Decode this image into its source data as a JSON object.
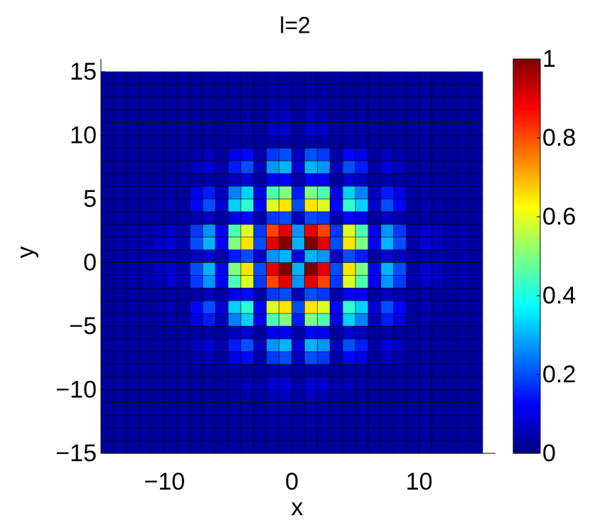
{
  "chart_data": {
    "type": "heatmap",
    "title": "l=2",
    "xlabel": "x",
    "ylabel": "y",
    "colormap": "jet",
    "x": [
      -15,
      -14,
      -13,
      -12,
      -11,
      -10,
      -9,
      -8,
      -7,
      -6,
      -5,
      -4,
      -3,
      -2,
      -1,
      0,
      1,
      2,
      3,
      4,
      5,
      6,
      7,
      8,
      9,
      10,
      11,
      12,
      13,
      14
    ],
    "y": [
      -15,
      -14,
      -13,
      -12,
      -11,
      -10,
      -9,
      -8,
      -7,
      -6,
      -5,
      -4,
      -3,
      -2,
      -1,
      0,
      1,
      2,
      3,
      4,
      5,
      6,
      7,
      8,
      9,
      10,
      11,
      12,
      13,
      14
    ],
    "z": [
      [
        0.03,
        0.03,
        0.03,
        0.03,
        0.03,
        0.03,
        0.03,
        0.03,
        0.03,
        0.03,
        0.03,
        0.03,
        0.03,
        0.03,
        0.03,
        0.03,
        0.03,
        0.03,
        0.03,
        0.03,
        0.03,
        0.03,
        0.03,
        0.03,
        0.03,
        0.03,
        0.03,
        0.03,
        0.03,
        0.03
      ],
      [
        0.03,
        0.03,
        0.03,
        0.03,
        0.03,
        0.03,
        0.03,
        0.03,
        0.03,
        0.03,
        0.03,
        0.03,
        0.03,
        0.03,
        0.03,
        0.03,
        0.03,
        0.03,
        0.03,
        0.03,
        0.03,
        0.03,
        0.03,
        0.03,
        0.03,
        0.03,
        0.03,
        0.03,
        0.03,
        0.03
      ],
      [
        0.03,
        0.03,
        0.03,
        0.03,
        0.03,
        0.03,
        0.03,
        0.03,
        0.03,
        0.03,
        0.03,
        0.03,
        0.03,
        0.04,
        0.04,
        0.03,
        0.04,
        0.04,
        0.03,
        0.03,
        0.03,
        0.03,
        0.03,
        0.03,
        0.03,
        0.03,
        0.03,
        0.03,
        0.03,
        0.03
      ],
      [
        0.03,
        0.03,
        0.03,
        0.03,
        0.03,
        0.03,
        0.03,
        0.03,
        0.03,
        0.03,
        0.03,
        0.03,
        0.03,
        0.04,
        0.04,
        0.03,
        0.04,
        0.04,
        0.03,
        0.03,
        0.03,
        0.03,
        0.03,
        0.03,
        0.03,
        0.03,
        0.03,
        0.03,
        0.03,
        0.03
      ],
      [
        0.03,
        0.03,
        0.03,
        0.03,
        0.03,
        0.03,
        0.03,
        0.03,
        0.03,
        0.03,
        0.03,
        0.04,
        0.03,
        0.05,
        0.06,
        0.03,
        0.06,
        0.05,
        0.03,
        0.04,
        0.03,
        0.03,
        0.03,
        0.03,
        0.03,
        0.03,
        0.03,
        0.03,
        0.03,
        0.03
      ],
      [
        0.03,
        0.03,
        0.03,
        0.03,
        0.03,
        0.03,
        0.03,
        0.03,
        0.03,
        0.03,
        0.04,
        0.05,
        0.03,
        0.07,
        0.08,
        0.03,
        0.08,
        0.07,
        0.03,
        0.05,
        0.04,
        0.03,
        0.03,
        0.03,
        0.03,
        0.03,
        0.03,
        0.03,
        0.03,
        0.03
      ],
      [
        0.03,
        0.03,
        0.03,
        0.03,
        0.03,
        0.03,
        0.03,
        0.03,
        0.03,
        0.03,
        0.03,
        0.03,
        0.03,
        0.04,
        0.04,
        0.03,
        0.04,
        0.04,
        0.03,
        0.03,
        0.03,
        0.03,
        0.03,
        0.03,
        0.03,
        0.03,
        0.03,
        0.03,
        0.03,
        0.03
      ],
      [
        0.03,
        0.03,
        0.03,
        0.03,
        0.03,
        0.03,
        0.03,
        0.04,
        0.06,
        0.03,
        0.1,
        0.13,
        0.04,
        0.18,
        0.2,
        0.06,
        0.2,
        0.18,
        0.04,
        0.13,
        0.1,
        0.03,
        0.06,
        0.04,
        0.03,
        0.03,
        0.03,
        0.03,
        0.03,
        0.03
      ],
      [
        0.03,
        0.03,
        0.03,
        0.03,
        0.03,
        0.03,
        0.03,
        0.06,
        0.09,
        0.04,
        0.15,
        0.2,
        0.06,
        0.27,
        0.3,
        0.09,
        0.3,
        0.27,
        0.06,
        0.2,
        0.15,
        0.04,
        0.09,
        0.06,
        0.03,
        0.03,
        0.03,
        0.03,
        0.03,
        0.03
      ],
      [
        0.03,
        0.03,
        0.03,
        0.03,
        0.03,
        0.03,
        0.03,
        0.03,
        0.04,
        0.03,
        0.06,
        0.08,
        0.03,
        0.11,
        0.12,
        0.04,
        0.12,
        0.11,
        0.03,
        0.08,
        0.06,
        0.03,
        0.04,
        0.03,
        0.03,
        0.03,
        0.03,
        0.03,
        0.03,
        0.03
      ],
      [
        0.03,
        0.03,
        0.03,
        0.03,
        0.03,
        0.04,
        0.03,
        0.1,
        0.15,
        0.06,
        0.25,
        0.33,
        0.1,
        0.45,
        0.5,
        0.15,
        0.5,
        0.45,
        0.1,
        0.33,
        0.25,
        0.06,
        0.15,
        0.1,
        0.03,
        0.04,
        0.03,
        0.03,
        0.03,
        0.03
      ],
      [
        0.03,
        0.03,
        0.03,
        0.03,
        0.04,
        0.05,
        0.03,
        0.13,
        0.2,
        0.08,
        0.33,
        0.42,
        0.13,
        0.59,
        0.65,
        0.2,
        0.65,
        0.59,
        0.13,
        0.42,
        0.33,
        0.08,
        0.2,
        0.13,
        0.03,
        0.05,
        0.04,
        0.03,
        0.03,
        0.03
      ],
      [
        0.03,
        0.03,
        0.03,
        0.03,
        0.03,
        0.03,
        0.03,
        0.04,
        0.06,
        0.03,
        0.1,
        0.13,
        0.04,
        0.18,
        0.2,
        0.06,
        0.2,
        0.18,
        0.04,
        0.13,
        0.1,
        0.03,
        0.06,
        0.04,
        0.03,
        0.03,
        0.03,
        0.03,
        0.03,
        0.03
      ],
      [
        0.03,
        0.03,
        0.04,
        0.04,
        0.05,
        0.07,
        0.04,
        0.18,
        0.27,
        0.11,
        0.45,
        0.59,
        0.18,
        0.81,
        0.9,
        0.27,
        0.9,
        0.81,
        0.18,
        0.59,
        0.45,
        0.11,
        0.27,
        0.18,
        0.04,
        0.07,
        0.05,
        0.04,
        0.04,
        0.03
      ],
      [
        0.03,
        0.03,
        0.04,
        0.04,
        0.06,
        0.08,
        0.04,
        0.2,
        0.3,
        0.12,
        0.5,
        0.65,
        0.2,
        0.9,
        1,
        0.3,
        1,
        0.9,
        0.2,
        0.65,
        0.5,
        0.12,
        0.3,
        0.2,
        0.04,
        0.08,
        0.06,
        0.04,
        0.04,
        0.03
      ],
      [
        0.03,
        0.03,
        0.03,
        0.03,
        0.03,
        0.03,
        0.03,
        0.06,
        0.09,
        0.04,
        0.15,
        0.2,
        0.06,
        0.27,
        0.3,
        0.09,
        0.3,
        0.27,
        0.06,
        0.2,
        0.15,
        0.04,
        0.09,
        0.06,
        0.03,
        0.03,
        0.03,
        0.03,
        0.03,
        0.03
      ],
      [
        0.03,
        0.03,
        0.04,
        0.04,
        0.06,
        0.08,
        0.04,
        0.2,
        0.3,
        0.12,
        0.5,
        0.65,
        0.2,
        0.9,
        1,
        0.3,
        1,
        0.9,
        0.2,
        0.65,
        0.5,
        0.12,
        0.3,
        0.2,
        0.04,
        0.08,
        0.06,
        0.04,
        0.04,
        0.03
      ],
      [
        0.03,
        0.03,
        0.04,
        0.04,
        0.05,
        0.07,
        0.04,
        0.18,
        0.27,
        0.11,
        0.45,
        0.59,
        0.18,
        0.81,
        0.9,
        0.27,
        0.9,
        0.81,
        0.18,
        0.59,
        0.45,
        0.11,
        0.27,
        0.18,
        0.04,
        0.07,
        0.05,
        0.04,
        0.04,
        0.03
      ],
      [
        0.03,
        0.03,
        0.03,
        0.03,
        0.03,
        0.03,
        0.03,
        0.04,
        0.06,
        0.03,
        0.1,
        0.13,
        0.04,
        0.18,
        0.2,
        0.06,
        0.2,
        0.18,
        0.04,
        0.13,
        0.1,
        0.03,
        0.06,
        0.04,
        0.03,
        0.03,
        0.03,
        0.03,
        0.03,
        0.03
      ],
      [
        0.03,
        0.03,
        0.03,
        0.03,
        0.04,
        0.05,
        0.03,
        0.13,
        0.2,
        0.08,
        0.33,
        0.42,
        0.13,
        0.59,
        0.65,
        0.2,
        0.65,
        0.59,
        0.13,
        0.42,
        0.33,
        0.08,
        0.2,
        0.13,
        0.03,
        0.05,
        0.04,
        0.03,
        0.03,
        0.03
      ],
      [
        0.03,
        0.03,
        0.03,
        0.03,
        0.03,
        0.04,
        0.03,
        0.1,
        0.15,
        0.06,
        0.25,
        0.33,
        0.1,
        0.45,
        0.5,
        0.15,
        0.5,
        0.45,
        0.1,
        0.33,
        0.25,
        0.06,
        0.15,
        0.1,
        0.03,
        0.04,
        0.03,
        0.03,
        0.03,
        0.03
      ],
      [
        0.03,
        0.03,
        0.03,
        0.03,
        0.03,
        0.03,
        0.03,
        0.03,
        0.04,
        0.03,
        0.06,
        0.08,
        0.03,
        0.11,
        0.12,
        0.04,
        0.12,
        0.11,
        0.03,
        0.08,
        0.06,
        0.03,
        0.04,
        0.03,
        0.03,
        0.03,
        0.03,
        0.03,
        0.03,
        0.03
      ],
      [
        0.03,
        0.03,
        0.03,
        0.03,
        0.03,
        0.03,
        0.03,
        0.06,
        0.09,
        0.04,
        0.15,
        0.2,
        0.06,
        0.27,
        0.3,
        0.09,
        0.3,
        0.27,
        0.06,
        0.2,
        0.15,
        0.04,
        0.09,
        0.06,
        0.03,
        0.03,
        0.03,
        0.03,
        0.03,
        0.03
      ],
      [
        0.03,
        0.03,
        0.03,
        0.03,
        0.03,
        0.03,
        0.03,
        0.04,
        0.06,
        0.03,
        0.1,
        0.13,
        0.04,
        0.18,
        0.2,
        0.06,
        0.2,
        0.18,
        0.04,
        0.13,
        0.1,
        0.03,
        0.06,
        0.04,
        0.03,
        0.03,
        0.03,
        0.03,
        0.03,
        0.03
      ],
      [
        0.03,
        0.03,
        0.03,
        0.03,
        0.03,
        0.03,
        0.03,
        0.03,
        0.03,
        0.03,
        0.03,
        0.03,
        0.03,
        0.04,
        0.04,
        0.03,
        0.04,
        0.04,
        0.03,
        0.03,
        0.03,
        0.03,
        0.03,
        0.03,
        0.03,
        0.03,
        0.03,
        0.03,
        0.03,
        0.03
      ],
      [
        0.03,
        0.03,
        0.03,
        0.03,
        0.03,
        0.03,
        0.03,
        0.03,
        0.03,
        0.03,
        0.04,
        0.05,
        0.03,
        0.07,
        0.08,
        0.03,
        0.08,
        0.07,
        0.03,
        0.05,
        0.04,
        0.03,
        0.03,
        0.03,
        0.03,
        0.03,
        0.03,
        0.03,
        0.03,
        0.03
      ],
      [
        0.03,
        0.03,
        0.03,
        0.03,
        0.03,
        0.03,
        0.03,
        0.03,
        0.03,
        0.03,
        0.03,
        0.04,
        0.03,
        0.05,
        0.06,
        0.03,
        0.06,
        0.05,
        0.03,
        0.04,
        0.03,
        0.03,
        0.03,
        0.03,
        0.03,
        0.03,
        0.03,
        0.03,
        0.03,
        0.03
      ],
      [
        0.03,
        0.03,
        0.03,
        0.03,
        0.03,
        0.03,
        0.03,
        0.03,
        0.03,
        0.03,
        0.03,
        0.03,
        0.03,
        0.04,
        0.04,
        0.03,
        0.04,
        0.04,
        0.03,
        0.03,
        0.03,
        0.03,
        0.03,
        0.03,
        0.03,
        0.03,
        0.03,
        0.03,
        0.03,
        0.03
      ],
      [
        0.03,
        0.03,
        0.03,
        0.03,
        0.03,
        0.03,
        0.03,
        0.03,
        0.03,
        0.03,
        0.03,
        0.03,
        0.03,
        0.04,
        0.04,
        0.03,
        0.04,
        0.04,
        0.03,
        0.03,
        0.03,
        0.03,
        0.03,
        0.03,
        0.03,
        0.03,
        0.03,
        0.03,
        0.03,
        0.03
      ],
      [
        0.03,
        0.03,
        0.03,
        0.03,
        0.03,
        0.03,
        0.03,
        0.03,
        0.03,
        0.03,
        0.03,
        0.03,
        0.03,
        0.03,
        0.03,
        0.03,
        0.03,
        0.03,
        0.03,
        0.03,
        0.03,
        0.03,
        0.03,
        0.03,
        0.03,
        0.03,
        0.03,
        0.03,
        0.03,
        0.03
      ]
    ],
    "xlim": [
      -15,
      16
    ],
    "ylim": [
      -15,
      16
    ],
    "xticks": [
      {
        "value": -10,
        "label": "−10"
      },
      0,
      10
    ],
    "yticks": [
      {
        "value": -15,
        "label": "−15"
      },
      {
        "value": -10,
        "label": "−10"
      },
      {
        "value": -5,
        "label": "−5"
      },
      0,
      5,
      10,
      15
    ],
    "clim": [
      0,
      1
    ],
    "cticks": [
      0,
      0.2,
      0.4,
      0.6,
      0.8,
      1
    ]
  }
}
